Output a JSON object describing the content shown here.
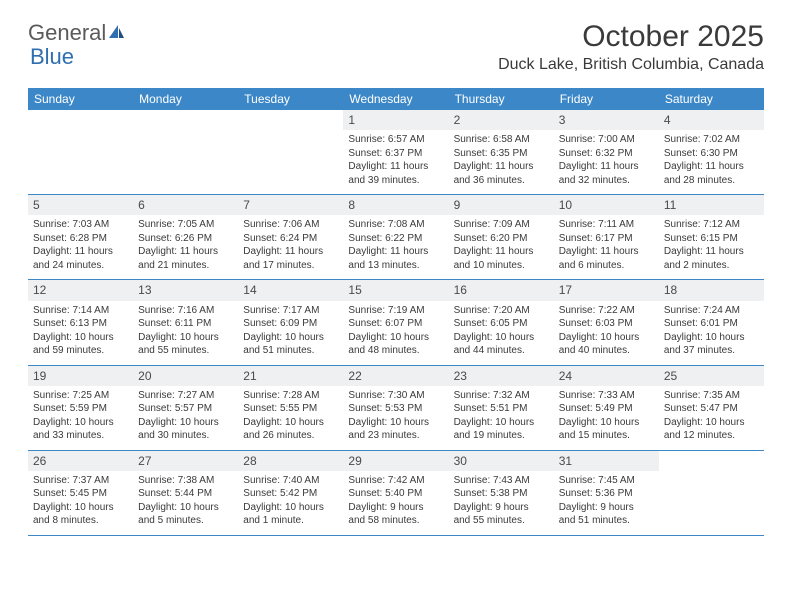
{
  "logo": {
    "text1": "General",
    "text2": "Blue"
  },
  "title": "October 2025",
  "location": "Duck Lake, British Columbia, Canada",
  "colors": {
    "header_bg": "#3c87c7",
    "header_text": "#ffffff",
    "daynum_bg": "#eef0f1",
    "border": "#3c87c7",
    "text": "#3a3a3a",
    "logo_gray": "#5a5a5a",
    "logo_blue": "#2f6fb0"
  },
  "day_names": [
    "Sunday",
    "Monday",
    "Tuesday",
    "Wednesday",
    "Thursday",
    "Friday",
    "Saturday"
  ],
  "weeks": [
    [
      {
        "empty": true
      },
      {
        "empty": true
      },
      {
        "empty": true
      },
      {
        "n": "1",
        "sr": "Sunrise: 6:57 AM",
        "ss": "Sunset: 6:37 PM",
        "d1": "Daylight: 11 hours",
        "d2": "and 39 minutes."
      },
      {
        "n": "2",
        "sr": "Sunrise: 6:58 AM",
        "ss": "Sunset: 6:35 PM",
        "d1": "Daylight: 11 hours",
        "d2": "and 36 minutes."
      },
      {
        "n": "3",
        "sr": "Sunrise: 7:00 AM",
        "ss": "Sunset: 6:32 PM",
        "d1": "Daylight: 11 hours",
        "d2": "and 32 minutes."
      },
      {
        "n": "4",
        "sr": "Sunrise: 7:02 AM",
        "ss": "Sunset: 6:30 PM",
        "d1": "Daylight: 11 hours",
        "d2": "and 28 minutes."
      }
    ],
    [
      {
        "n": "5",
        "sr": "Sunrise: 7:03 AM",
        "ss": "Sunset: 6:28 PM",
        "d1": "Daylight: 11 hours",
        "d2": "and 24 minutes."
      },
      {
        "n": "6",
        "sr": "Sunrise: 7:05 AM",
        "ss": "Sunset: 6:26 PM",
        "d1": "Daylight: 11 hours",
        "d2": "and 21 minutes."
      },
      {
        "n": "7",
        "sr": "Sunrise: 7:06 AM",
        "ss": "Sunset: 6:24 PM",
        "d1": "Daylight: 11 hours",
        "d2": "and 17 minutes."
      },
      {
        "n": "8",
        "sr": "Sunrise: 7:08 AM",
        "ss": "Sunset: 6:22 PM",
        "d1": "Daylight: 11 hours",
        "d2": "and 13 minutes."
      },
      {
        "n": "9",
        "sr": "Sunrise: 7:09 AM",
        "ss": "Sunset: 6:20 PM",
        "d1": "Daylight: 11 hours",
        "d2": "and 10 minutes."
      },
      {
        "n": "10",
        "sr": "Sunrise: 7:11 AM",
        "ss": "Sunset: 6:17 PM",
        "d1": "Daylight: 11 hours",
        "d2": "and 6 minutes."
      },
      {
        "n": "11",
        "sr": "Sunrise: 7:12 AM",
        "ss": "Sunset: 6:15 PM",
        "d1": "Daylight: 11 hours",
        "d2": "and 2 minutes."
      }
    ],
    [
      {
        "n": "12",
        "sr": "Sunrise: 7:14 AM",
        "ss": "Sunset: 6:13 PM",
        "d1": "Daylight: 10 hours",
        "d2": "and 59 minutes."
      },
      {
        "n": "13",
        "sr": "Sunrise: 7:16 AM",
        "ss": "Sunset: 6:11 PM",
        "d1": "Daylight: 10 hours",
        "d2": "and 55 minutes."
      },
      {
        "n": "14",
        "sr": "Sunrise: 7:17 AM",
        "ss": "Sunset: 6:09 PM",
        "d1": "Daylight: 10 hours",
        "d2": "and 51 minutes."
      },
      {
        "n": "15",
        "sr": "Sunrise: 7:19 AM",
        "ss": "Sunset: 6:07 PM",
        "d1": "Daylight: 10 hours",
        "d2": "and 48 minutes."
      },
      {
        "n": "16",
        "sr": "Sunrise: 7:20 AM",
        "ss": "Sunset: 6:05 PM",
        "d1": "Daylight: 10 hours",
        "d2": "and 44 minutes."
      },
      {
        "n": "17",
        "sr": "Sunrise: 7:22 AM",
        "ss": "Sunset: 6:03 PM",
        "d1": "Daylight: 10 hours",
        "d2": "and 40 minutes."
      },
      {
        "n": "18",
        "sr": "Sunrise: 7:24 AM",
        "ss": "Sunset: 6:01 PM",
        "d1": "Daylight: 10 hours",
        "d2": "and 37 minutes."
      }
    ],
    [
      {
        "n": "19",
        "sr": "Sunrise: 7:25 AM",
        "ss": "Sunset: 5:59 PM",
        "d1": "Daylight: 10 hours",
        "d2": "and 33 minutes."
      },
      {
        "n": "20",
        "sr": "Sunrise: 7:27 AM",
        "ss": "Sunset: 5:57 PM",
        "d1": "Daylight: 10 hours",
        "d2": "and 30 minutes."
      },
      {
        "n": "21",
        "sr": "Sunrise: 7:28 AM",
        "ss": "Sunset: 5:55 PM",
        "d1": "Daylight: 10 hours",
        "d2": "and 26 minutes."
      },
      {
        "n": "22",
        "sr": "Sunrise: 7:30 AM",
        "ss": "Sunset: 5:53 PM",
        "d1": "Daylight: 10 hours",
        "d2": "and 23 minutes."
      },
      {
        "n": "23",
        "sr": "Sunrise: 7:32 AM",
        "ss": "Sunset: 5:51 PM",
        "d1": "Daylight: 10 hours",
        "d2": "and 19 minutes."
      },
      {
        "n": "24",
        "sr": "Sunrise: 7:33 AM",
        "ss": "Sunset: 5:49 PM",
        "d1": "Daylight: 10 hours",
        "d2": "and 15 minutes."
      },
      {
        "n": "25",
        "sr": "Sunrise: 7:35 AM",
        "ss": "Sunset: 5:47 PM",
        "d1": "Daylight: 10 hours",
        "d2": "and 12 minutes."
      }
    ],
    [
      {
        "n": "26",
        "sr": "Sunrise: 7:37 AM",
        "ss": "Sunset: 5:45 PM",
        "d1": "Daylight: 10 hours",
        "d2": "and 8 minutes."
      },
      {
        "n": "27",
        "sr": "Sunrise: 7:38 AM",
        "ss": "Sunset: 5:44 PM",
        "d1": "Daylight: 10 hours",
        "d2": "and 5 minutes."
      },
      {
        "n": "28",
        "sr": "Sunrise: 7:40 AM",
        "ss": "Sunset: 5:42 PM",
        "d1": "Daylight: 10 hours",
        "d2": "and 1 minute."
      },
      {
        "n": "29",
        "sr": "Sunrise: 7:42 AM",
        "ss": "Sunset: 5:40 PM",
        "d1": "Daylight: 9 hours",
        "d2": "and 58 minutes."
      },
      {
        "n": "30",
        "sr": "Sunrise: 7:43 AM",
        "ss": "Sunset: 5:38 PM",
        "d1": "Daylight: 9 hours",
        "d2": "and 55 minutes."
      },
      {
        "n": "31",
        "sr": "Sunrise: 7:45 AM",
        "ss": "Sunset: 5:36 PM",
        "d1": "Daylight: 9 hours",
        "d2": "and 51 minutes."
      },
      {
        "empty": true
      }
    ]
  ]
}
